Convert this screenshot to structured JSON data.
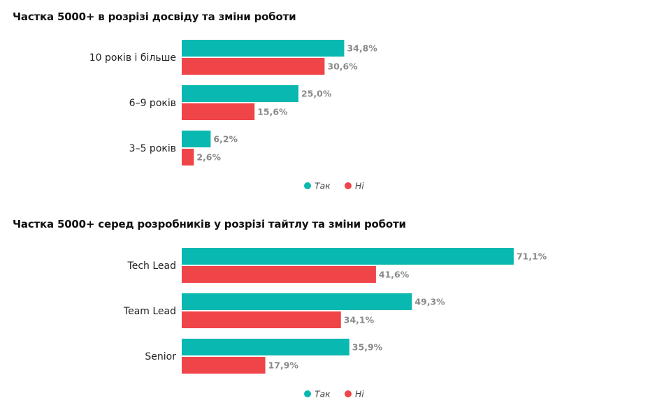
{
  "colors": {
    "yes": "#09b8b0",
    "no": "#ef4448"
  },
  "chart_data": [
    {
      "type": "bar",
      "orientation": "horizontal",
      "title": "Частка 5000+ в розрізі досвіду та зміни роботи",
      "categories": [
        "10 років і більше",
        "6–9 років",
        "3–5 років"
      ],
      "series": [
        {
          "name": "Так",
          "values": [
            34.8,
            25.0,
            6.2
          ],
          "labels": [
            "34,8%",
            "25,0%",
            "6,2%"
          ]
        },
        {
          "name": "Ні",
          "values": [
            30.6,
            15.6,
            2.6
          ],
          "labels": [
            "30,6%",
            "15,6%",
            "2,6%"
          ]
        }
      ],
      "xlim": [
        0,
        100
      ],
      "grid": false,
      "legend": "bottom"
    },
    {
      "type": "bar",
      "orientation": "horizontal",
      "title": "Частка 5000+ серед розробників у розрізі тайтлу та зміни роботи",
      "categories": [
        "Tech Lead",
        "Team Lead",
        "Senior"
      ],
      "series": [
        {
          "name": "Так",
          "values": [
            71.1,
            49.3,
            35.9
          ],
          "labels": [
            "71,1%",
            "49,3%",
            "35,9%"
          ]
        },
        {
          "name": "Ні",
          "values": [
            41.6,
            34.1,
            17.9
          ],
          "labels": [
            "41,6%",
            "34,1%",
            "17,9%"
          ]
        }
      ],
      "xlim": [
        0,
        100
      ],
      "grid": false,
      "legend": "bottom"
    }
  ]
}
